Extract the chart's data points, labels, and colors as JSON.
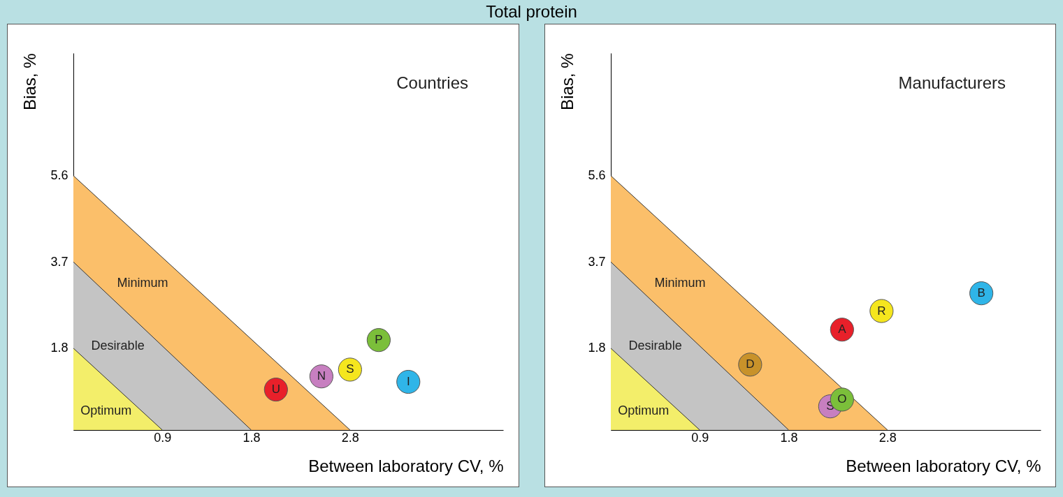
{
  "chart_data": [
    {
      "type": "scatter",
      "title": "Countries",
      "annotations": [
        "Total protein"
      ],
      "xlabel": "Between laboratory CV, %",
      "ylabel": "Bias, %",
      "xlim": [
        0,
        4.35
      ],
      "ylim": [
        0,
        8.3
      ],
      "xticks": [
        0.9,
        1.8,
        2.8
      ],
      "yticks": [
        1.8,
        3.7,
        5.6
      ],
      "grid": false,
      "marker": "circle",
      "series": [
        {
          "name": "Minimum",
          "type": "area",
          "marker": "none",
          "color": "#fbbf6a",
          "x": [
            0,
            2.8
          ],
          "values": [
            5.6,
            0
          ]
        },
        {
          "name": "Desirable",
          "type": "area",
          "marker": "none",
          "color": "#c4c4c4",
          "x": [
            0,
            1.8
          ],
          "values": [
            3.7,
            0
          ]
        },
        {
          "name": "Optimum",
          "type": "area",
          "marker": "none",
          "color": "#f3ee6a",
          "x": [
            0,
            0.9
          ],
          "values": [
            1.8,
            0
          ]
        },
        {
          "name": "U",
          "color": "#e8202a",
          "x": [
            2.05
          ],
          "values": [
            0.89
          ]
        },
        {
          "name": "N",
          "color": "#c77fc0",
          "x": [
            2.51
          ],
          "values": [
            1.18
          ]
        },
        {
          "name": "S",
          "color": "#f5e61e",
          "x": [
            2.8
          ],
          "values": [
            1.33
          ]
        },
        {
          "name": "P",
          "color": "#7bbf3a",
          "x": [
            3.09
          ],
          "values": [
            1.98
          ]
        },
        {
          "name": "I",
          "color": "#2fb5e8",
          "x": [
            3.39
          ],
          "values": [
            1.06
          ]
        }
      ]
    },
    {
      "type": "scatter",
      "title": "Manufacturers",
      "xlabel": "Between laboratory CV, %",
      "ylabel": "Bias, %",
      "xlim": [
        0,
        4.35
      ],
      "ylim": [
        0,
        8.3
      ],
      "xticks": [
        0.9,
        1.8,
        2.8
      ],
      "yticks": [
        1.8,
        3.7,
        5.6
      ],
      "grid": false,
      "marker": "circle",
      "series": [
        {
          "name": "Minimum",
          "type": "area",
          "marker": "none",
          "color": "#fbbf6a",
          "x": [
            0,
            2.8
          ],
          "values": [
            5.6,
            0
          ]
        },
        {
          "name": "Desirable",
          "type": "area",
          "marker": "none",
          "color": "#c4c4c4",
          "x": [
            0,
            1.8
          ],
          "values": [
            3.7,
            0
          ]
        },
        {
          "name": "Optimum",
          "type": "area",
          "marker": "none",
          "color": "#f3ee6a",
          "x": [
            0,
            0.9
          ],
          "values": [
            1.8,
            0
          ]
        },
        {
          "name": "D",
          "color": "#c8922a",
          "x": [
            1.41
          ],
          "values": [
            1.44
          ]
        },
        {
          "name": "A",
          "color": "#e8202a",
          "x": [
            2.34
          ],
          "values": [
            2.21
          ]
        },
        {
          "name": "R",
          "color": "#f5e61e",
          "x": [
            2.74
          ],
          "values": [
            2.62
          ]
        },
        {
          "name": "B",
          "color": "#2fb5e8",
          "x": [
            3.75
          ],
          "values": [
            3.01
          ]
        },
        {
          "name": "S",
          "color": "#c77fc0",
          "x": [
            2.22
          ],
          "values": [
            0.52
          ]
        },
        {
          "name": "O",
          "color": "#7bbf3a",
          "x": [
            2.34
          ],
          "values": [
            0.67
          ]
        }
      ]
    }
  ]
}
